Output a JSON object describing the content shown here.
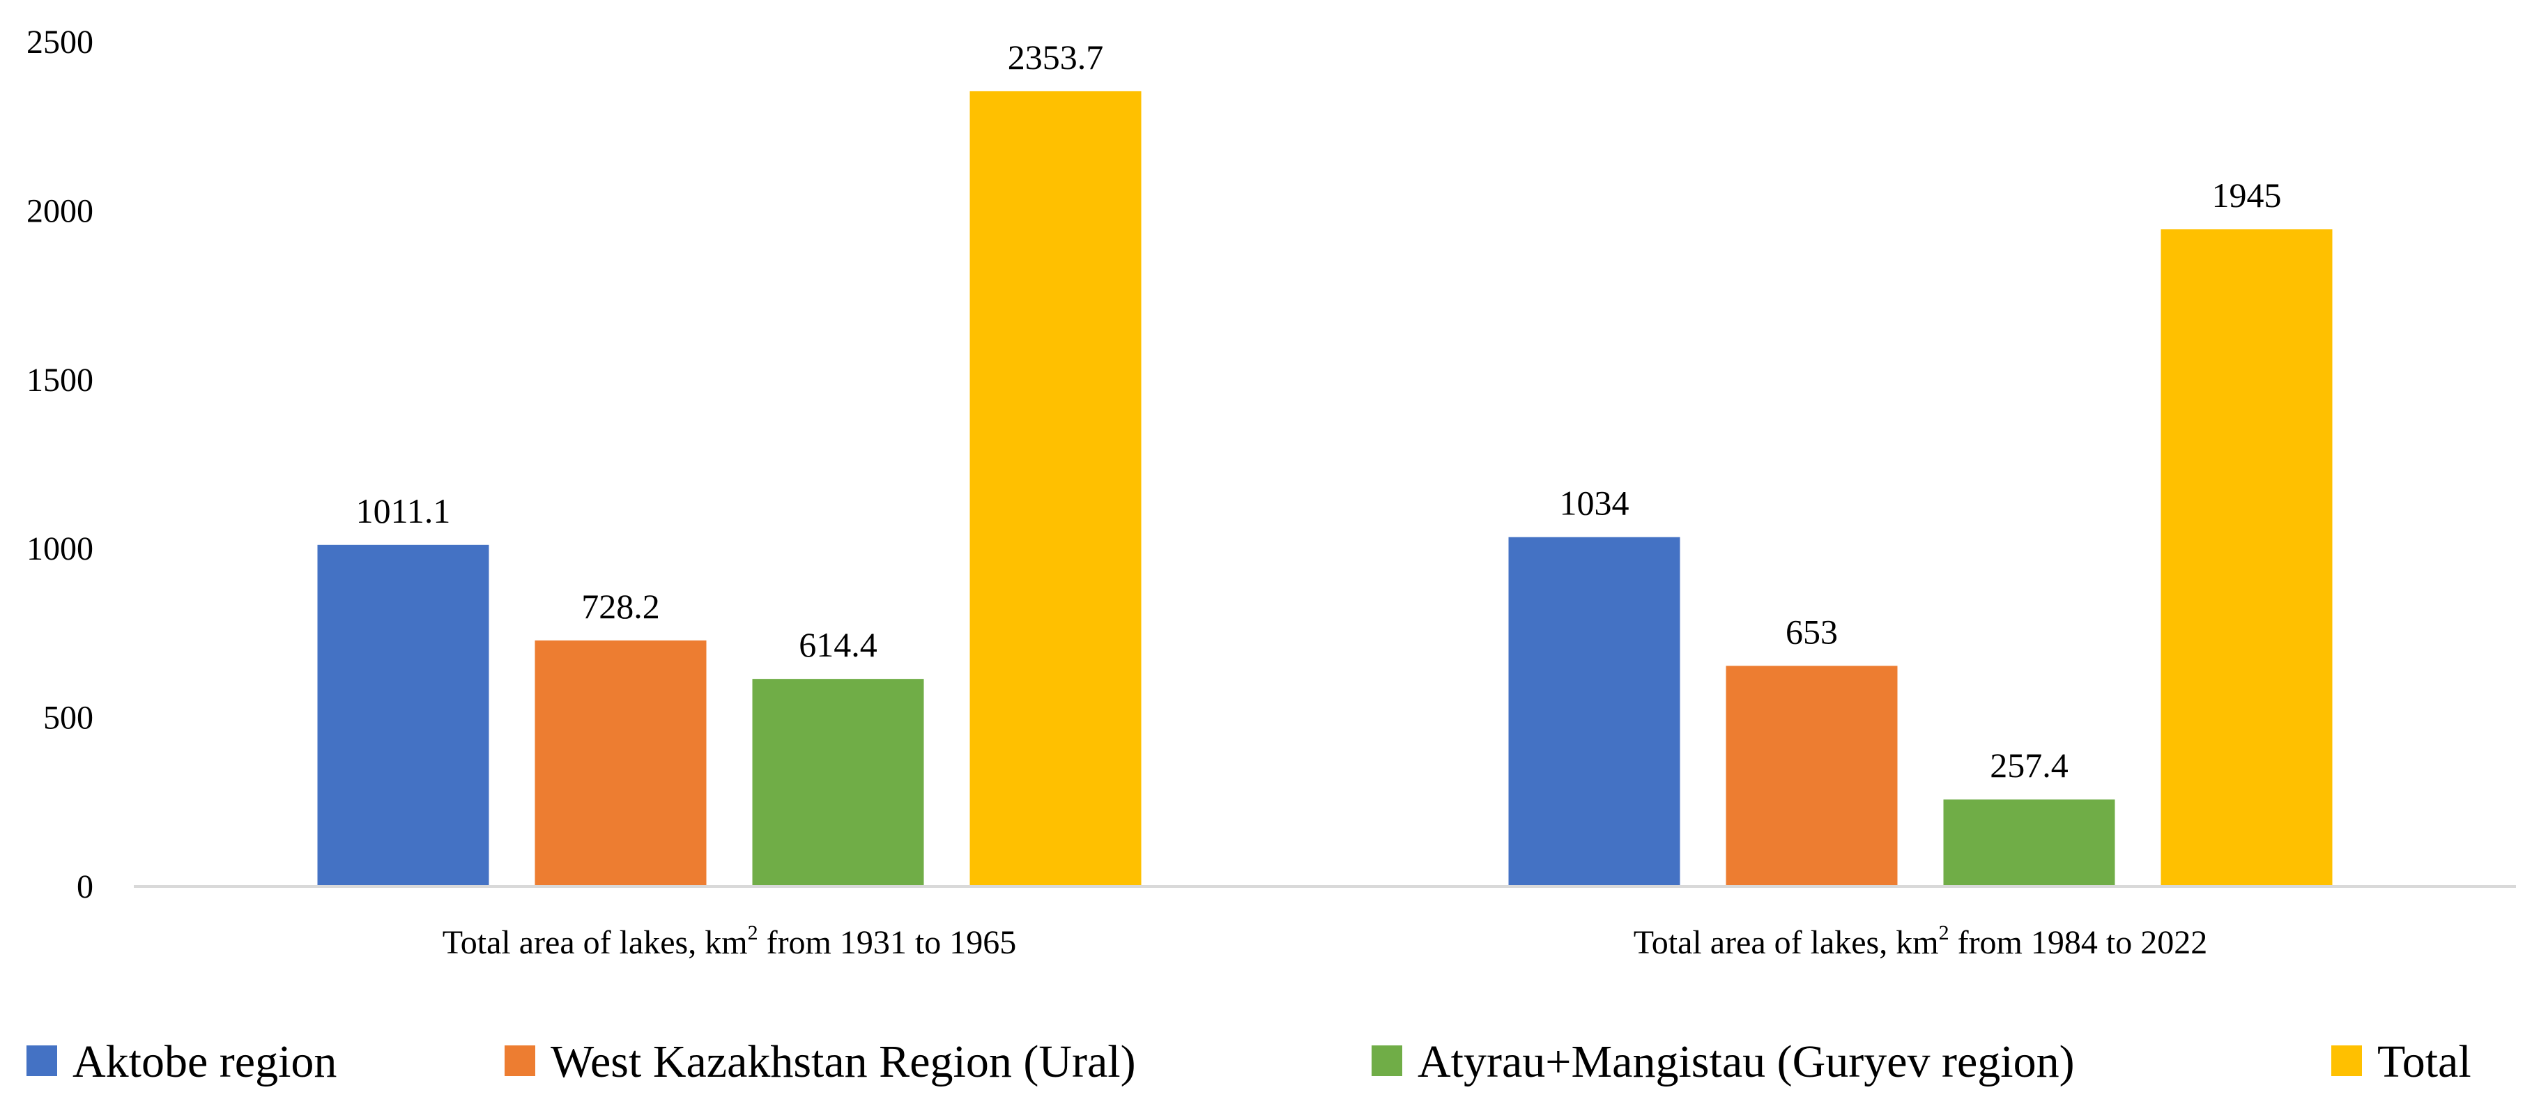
{
  "chart_data": {
    "type": "bar",
    "title": "",
    "xlabel": "",
    "ylabel": "",
    "ylim": [
      0,
      2500
    ],
    "yticks": [
      0,
      500,
      1000,
      1500,
      2000,
      2500
    ],
    "grid": false,
    "legend_position": "bottom",
    "categories": [
      {
        "before": "Total area of lakes,",
        "unit": "km",
        "sup": "2",
        "after": "from 1931 to 1965"
      },
      {
        "before": "Total area of lakes,",
        "unit": "km",
        "sup": "2",
        "after": "from 1984 to 2022"
      }
    ],
    "series": [
      {
        "name": "Aktobe region",
        "color": "#4472C4",
        "values": [
          1011.1,
          1034
        ]
      },
      {
        "name": "West Kazakhstan Region (Ural)",
        "color": "#ED7D31",
        "values": [
          728.2,
          653
        ]
      },
      {
        "name": "Atyrau+Mangistau (Guryev region)",
        "color": "#70AD47",
        "values": [
          614.4,
          257.4
        ]
      },
      {
        "name": "Total",
        "color": "#FFC000",
        "values": [
          2353.7,
          1945
        ]
      }
    ],
    "value_labels": [
      [
        "1011.1",
        "1034"
      ],
      [
        "728.2",
        "653"
      ],
      [
        "614.4",
        "257.4"
      ],
      [
        "2353.7",
        "1945"
      ]
    ]
  }
}
